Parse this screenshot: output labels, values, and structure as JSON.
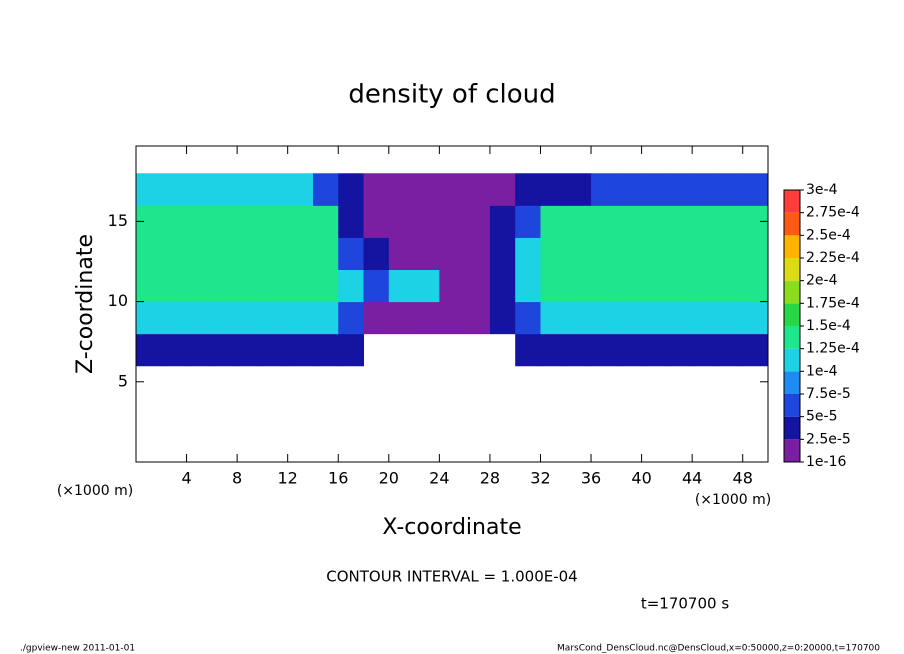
{
  "chart_data": {
    "type": "heatmap",
    "title": "density of cloud",
    "x_label": "X-coordinate",
    "y_label": "Z-coordinate",
    "x_unit": "(×1000 m)",
    "y_unit": "(×1000 m)",
    "contour_note": "CONTOUR INTERVAL = 1.000E-04",
    "time_note": "t=170700 s",
    "footer_left": "./gpview-new  2011-01-01",
    "footer_right": "MarsCond_DensCloud.nc@DensCloud,x=0:50000,z=0:20000,t=170700",
    "xlim": [
      0,
      50
    ],
    "ylim": [
      0,
      19.7
    ],
    "xticks": [
      4,
      8,
      12,
      16,
      20,
      24,
      28,
      32,
      36,
      40,
      44,
      48
    ],
    "yticks": [
      5,
      10,
      15
    ],
    "x": [
      1,
      3,
      5,
      7,
      9,
      11,
      13,
      15,
      17,
      19,
      21,
      23,
      25,
      27,
      29,
      31,
      33,
      35,
      37,
      39,
      41,
      43,
      45,
      47,
      49
    ],
    "y": [
      1,
      3,
      5,
      7,
      9,
      11,
      13,
      15,
      17,
      19
    ],
    "z": [
      [
        null,
        null,
        null,
        null,
        null,
        null,
        null,
        null,
        null,
        null,
        null,
        null,
        null,
        null,
        null,
        null,
        null,
        null,
        null,
        null,
        null,
        null,
        null,
        null,
        null
      ],
      [
        null,
        null,
        null,
        null,
        null,
        null,
        null,
        null,
        null,
        null,
        null,
        null,
        null,
        null,
        null,
        null,
        null,
        null,
        null,
        null,
        null,
        null,
        null,
        null,
        null
      ],
      [
        null,
        null,
        null,
        null,
        null,
        null,
        null,
        null,
        null,
        null,
        null,
        null,
        null,
        null,
        null,
        null,
        null,
        null,
        null,
        null,
        null,
        null,
        null,
        null,
        null
      ],
      [
        3e-05,
        3e-05,
        3e-05,
        3e-05,
        3e-05,
        3e-05,
        3e-05,
        3e-05,
        3e-05,
        null,
        null,
        null,
        null,
        null,
        null,
        3e-05,
        3e-05,
        3e-05,
        3e-05,
        3e-05,
        3e-05,
        3e-05,
        3e-05,
        3e-05,
        3e-05
      ],
      [
        0.00011,
        0.00011,
        0.00011,
        0.00011,
        0.00011,
        0.00011,
        0.00011,
        0.00011,
        6e-05,
        1e-05,
        1e-05,
        1e-05,
        1e-05,
        1e-05,
        3e-05,
        6e-05,
        0.00011,
        0.00011,
        0.00011,
        0.00011,
        0.00011,
        0.00011,
        0.00011,
        0.00011,
        0.00011
      ],
      [
        0.00014,
        0.00014,
        0.00014,
        0.00014,
        0.00014,
        0.00014,
        0.00014,
        0.00014,
        0.00011,
        6e-05,
        0.00012,
        0.00012,
        1e-05,
        1e-05,
        3e-05,
        0.00011,
        0.00014,
        0.00014,
        0.00014,
        0.00014,
        0.00014,
        0.00014,
        0.00014,
        0.00014,
        0.00014
      ],
      [
        0.00014,
        0.00014,
        0.00014,
        0.00014,
        0.00014,
        0.00014,
        0.00014,
        0.00014,
        6e-05,
        3e-05,
        1e-05,
        1e-05,
        1e-05,
        1e-05,
        3e-05,
        0.00011,
        0.00014,
        0.00014,
        0.00014,
        0.00014,
        0.00014,
        0.00014,
        0.00014,
        0.00014,
        0.00014
      ],
      [
        0.00014,
        0.00014,
        0.00014,
        0.00014,
        0.00014,
        0.00014,
        0.00014,
        0.00014,
        3e-05,
        1e-05,
        1e-05,
        1e-05,
        1e-05,
        1e-05,
        3e-05,
        6e-05,
        0.00013,
        0.00013,
        0.00013,
        0.00013,
        0.00013,
        0.00013,
        0.00013,
        0.00013,
        0.00013
      ],
      [
        0.00011,
        0.00011,
        0.00011,
        0.00011,
        0.00011,
        0.00011,
        0.00011,
        6e-05,
        3e-05,
        1e-05,
        1e-05,
        1e-05,
        1e-05,
        1e-05,
        1e-05,
        3e-05,
        3e-05,
        3e-05,
        6e-05,
        6e-05,
        6e-05,
        6e-05,
        6e-05,
        6e-05,
        6e-05
      ],
      [
        null,
        null,
        null,
        null,
        null,
        null,
        null,
        null,
        null,
        null,
        null,
        null,
        null,
        null,
        null,
        null,
        null,
        null,
        null,
        null,
        null,
        null,
        null,
        null,
        null
      ]
    ],
    "colorbar": {
      "levels": [
        {
          "value": 1e-16,
          "label": "1e-16"
        },
        {
          "value": 2.5e-05,
          "label": "2.5e-5"
        },
        {
          "value": 5e-05,
          "label": "5e-5"
        },
        {
          "value": 7.5e-05,
          "label": "7.5e-5"
        },
        {
          "value": 0.0001,
          "label": "1e-4"
        },
        {
          "value": 0.000125,
          "label": "1.25e-4"
        },
        {
          "value": 0.00015,
          "label": "1.5e-4"
        },
        {
          "value": 0.000175,
          "label": "1.75e-4"
        },
        {
          "value": 0.0002,
          "label": "2e-4"
        },
        {
          "value": 0.000225,
          "label": "2.25e-4"
        },
        {
          "value": 0.00025,
          "label": "2.5e-4"
        },
        {
          "value": 0.000275,
          "label": "2.75e-4"
        },
        {
          "value": 0.0003,
          "label": "3e-4"
        }
      ],
      "colors": [
        "#7b1fa2",
        "#1414a0",
        "#1e46dc",
        "#1e8cf0",
        "#1ed2e6",
        "#1ee68c",
        "#28d746",
        "#8cdc1e",
        "#dcdc14",
        "#ffb400",
        "#ff5a14",
        "#ff3c3c",
        "#ff8c8c"
      ]
    }
  }
}
